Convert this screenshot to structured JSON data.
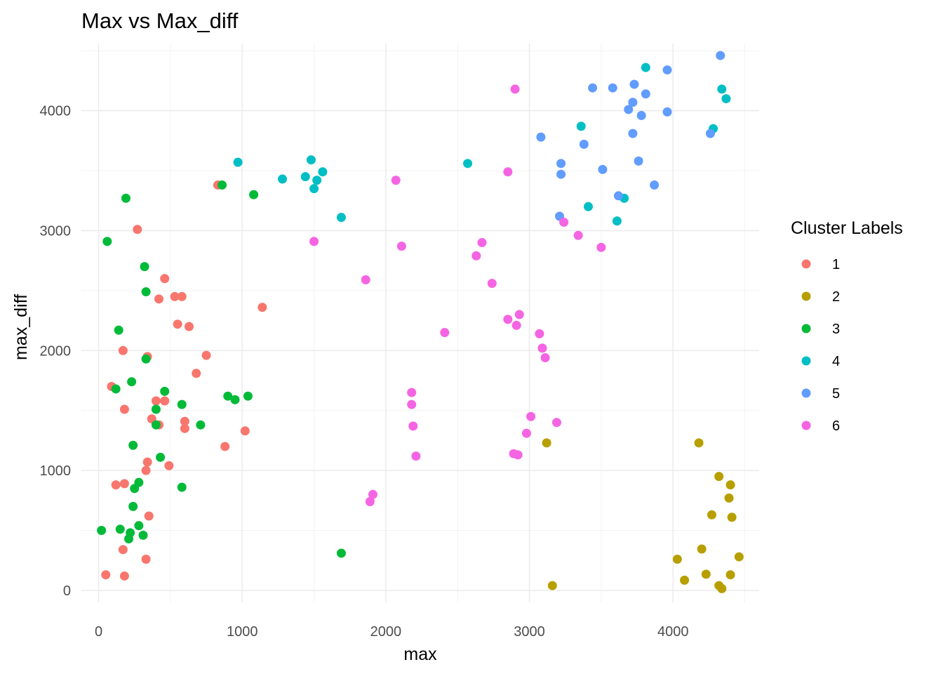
{
  "chart_data": {
    "type": "scatter",
    "title": "Max vs Max_diff",
    "xlabel": "max",
    "ylabel": "max_diff",
    "xlim": [
      -120,
      4600
    ],
    "ylim": [
      -100,
      4560
    ],
    "x_ticks": [
      0,
      1000,
      2000,
      3000,
      4000
    ],
    "y_ticks": [
      0,
      1000,
      2000,
      3000,
      4000
    ],
    "x_tick_labels": [
      "0",
      "1000",
      "2000",
      "3000",
      "4000"
    ],
    "y_tick_labels": [
      "0",
      "1000",
      "2000",
      "3000",
      "4000"
    ],
    "grid": true,
    "legend": {
      "title": "Cluster Labels",
      "placement": "right"
    },
    "series": [
      {
        "name": "1",
        "color": "#F8766D",
        "points": [
          [
            830,
            3380
          ],
          [
            270,
            3010
          ],
          [
            460,
            2600
          ],
          [
            420,
            2430
          ],
          [
            530,
            2450
          ],
          [
            580,
            2450
          ],
          [
            550,
            2220
          ],
          [
            630,
            2200
          ],
          [
            1140,
            2360
          ],
          [
            170,
            2000
          ],
          [
            340,
            1950
          ],
          [
            750,
            1960
          ],
          [
            90,
            1700
          ],
          [
            680,
            1810
          ],
          [
            180,
            1510
          ],
          [
            400,
            1580
          ],
          [
            460,
            1580
          ],
          [
            370,
            1430
          ],
          [
            420,
            1380
          ],
          [
            600,
            1410
          ],
          [
            600,
            1350
          ],
          [
            880,
            1200
          ],
          [
            1020,
            1330
          ],
          [
            340,
            1070
          ],
          [
            490,
            1040
          ],
          [
            330,
            1000
          ],
          [
            120,
            880
          ],
          [
            180,
            890
          ],
          [
            350,
            620
          ],
          [
            170,
            340
          ],
          [
            330,
            260
          ],
          [
            50,
            130
          ],
          [
            180,
            120
          ]
        ]
      },
      {
        "name": "2",
        "color": "#B79F00",
        "points": [
          [
            3120,
            1230
          ],
          [
            4180,
            1230
          ],
          [
            4320,
            950
          ],
          [
            4400,
            880
          ],
          [
            4390,
            770
          ],
          [
            4270,
            630
          ],
          [
            4410,
            610
          ],
          [
            4200,
            345
          ],
          [
            4460,
            280
          ],
          [
            4030,
            260
          ],
          [
            4230,
            135
          ],
          [
            4400,
            130
          ],
          [
            4080,
            85
          ],
          [
            4320,
            40
          ],
          [
            4340,
            15
          ],
          [
            3160,
            40
          ]
        ]
      },
      {
        "name": "3",
        "color": "#00BA38",
        "points": [
          [
            190,
            3270
          ],
          [
            60,
            2910
          ],
          [
            320,
            2700
          ],
          [
            860,
            3380
          ],
          [
            1080,
            3300
          ],
          [
            330,
            2490
          ],
          [
            140,
            2170
          ],
          [
            330,
            1930
          ],
          [
            230,
            1740
          ],
          [
            120,
            1680
          ],
          [
            460,
            1660
          ],
          [
            580,
            1550
          ],
          [
            400,
            1510
          ],
          [
            400,
            1380
          ],
          [
            710,
            1380
          ],
          [
            900,
            1620
          ],
          [
            950,
            1590
          ],
          [
            1040,
            1620
          ],
          [
            240,
            1210
          ],
          [
            430,
            1110
          ],
          [
            280,
            900
          ],
          [
            250,
            850
          ],
          [
            580,
            860
          ],
          [
            240,
            700
          ],
          [
            280,
            540
          ],
          [
            150,
            510
          ],
          [
            20,
            500
          ],
          [
            220,
            480
          ],
          [
            310,
            460
          ],
          [
            210,
            430
          ],
          [
            1690,
            310
          ]
        ]
      },
      {
        "name": "4",
        "color": "#00BFC4",
        "points": [
          [
            970,
            3570
          ],
          [
            1280,
            3430
          ],
          [
            1440,
            3450
          ],
          [
            1480,
            3590
          ],
          [
            1520,
            3420
          ],
          [
            1560,
            3490
          ],
          [
            1500,
            3350
          ],
          [
            1690,
            3110
          ],
          [
            2570,
            3560
          ],
          [
            3360,
            3870
          ],
          [
            3410,
            3200
          ],
          [
            3610,
            3080
          ],
          [
            3660,
            3270
          ],
          [
            3810,
            4360
          ],
          [
            4280,
            3850
          ],
          [
            4340,
            4180
          ],
          [
            4370,
            4100
          ]
        ]
      },
      {
        "name": "5",
        "color": "#619CFF",
        "points": [
          [
            3080,
            3780
          ],
          [
            3220,
            3560
          ],
          [
            3220,
            3470
          ],
          [
            3210,
            3120
          ],
          [
            3380,
            3720
          ],
          [
            3440,
            4190
          ],
          [
            3510,
            3510
          ],
          [
            3580,
            4190
          ],
          [
            3620,
            3290
          ],
          [
            3690,
            4010
          ],
          [
            3720,
            4070
          ],
          [
            3720,
            3810
          ],
          [
            3730,
            4220
          ],
          [
            3760,
            3580
          ],
          [
            3780,
            3960
          ],
          [
            3810,
            4140
          ],
          [
            3870,
            3380
          ],
          [
            3960,
            4340
          ],
          [
            3960,
            3990
          ],
          [
            4260,
            3810
          ],
          [
            4330,
            4460
          ]
        ]
      },
      {
        "name": "6",
        "color": "#F564E3",
        "points": [
          [
            2900,
            4180
          ],
          [
            2070,
            3420
          ],
          [
            1500,
            2910
          ],
          [
            2850,
            3490
          ],
          [
            2110,
            2870
          ],
          [
            2670,
            2900
          ],
          [
            2630,
            2790
          ],
          [
            1860,
            2590
          ],
          [
            2740,
            2560
          ],
          [
            3240,
            3070
          ],
          [
            3340,
            2960
          ],
          [
            3500,
            2860
          ],
          [
            2410,
            2150
          ],
          [
            2850,
            2260
          ],
          [
            2910,
            2210
          ],
          [
            2930,
            2300
          ],
          [
            3070,
            2140
          ],
          [
            3090,
            2020
          ],
          [
            3110,
            1940
          ],
          [
            2180,
            1650
          ],
          [
            2180,
            1550
          ],
          [
            2190,
            1370
          ],
          [
            2210,
            1120
          ],
          [
            3010,
            1450
          ],
          [
            3190,
            1400
          ],
          [
            2980,
            1310
          ],
          [
            2890,
            1140
          ],
          [
            2920,
            1130
          ],
          [
            1910,
            800
          ],
          [
            1890,
            740
          ]
        ]
      }
    ]
  }
}
